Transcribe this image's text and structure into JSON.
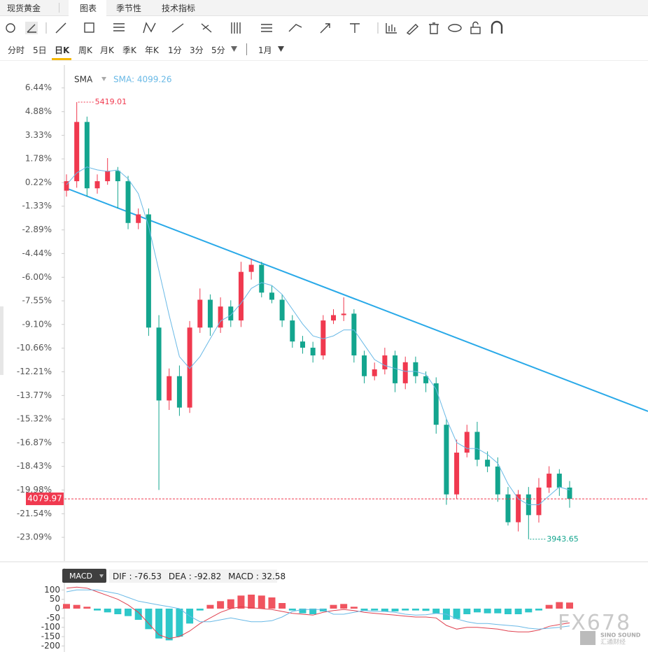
{
  "tabs": {
    "symbol": "现货黄金",
    "items": [
      "图表",
      "季节性",
      "技术指标"
    ]
  },
  "periods": [
    "分时",
    "5日",
    "日K",
    "周K",
    "月K",
    "季K",
    "年K",
    "1分",
    "3分",
    "5分"
  ],
  "period_extra": "1月",
  "watermark": {
    "text": "FX678",
    "brand": "SINO SOUND",
    "brand_cn": "汇通财经"
  },
  "chart_data": [
    {
      "type": "candlestick",
      "indicator": "SMA",
      "indicator_value_label": "SMA: 4099.26",
      "up_color": "#f0394f",
      "down_color": "#13a58e",
      "sma_color": "#69b9e6",
      "trend_color": "#29a9e8",
      "ylim": [
        3870,
        5544
      ],
      "yticks": [
        {
          "value": 5466.8,
          "label": "6.44%"
        },
        {
          "value": 5386.6,
          "label": "4.88%"
        },
        {
          "value": 5307.0,
          "label": "3.33%"
        },
        {
          "value": 5227.4,
          "label": "1.78%"
        },
        {
          "value": 5147.3,
          "label": "0.22%"
        },
        {
          "value": 5067.7,
          "label": "-1.33%"
        },
        {
          "value": 4987.6,
          "label": "-2.89%"
        },
        {
          "value": 4908.0,
          "label": "-4.44%"
        },
        {
          "value": 4827.8,
          "label": "-6.00%"
        },
        {
          "value": 4748.2,
          "label": "-7.55%"
        },
        {
          "value": 4668.6,
          "label": "-9.10%"
        },
        {
          "value": 4588.5,
          "label": "-10.66%"
        },
        {
          "value": 4508.9,
          "label": "-12.21%"
        },
        {
          "value": 4428.8,
          "label": "-13.77%"
        },
        {
          "value": 4349.2,
          "label": "-15.32%"
        },
        {
          "value": 4269.6,
          "label": "-16.87%"
        },
        {
          "value": 4189.5,
          "label": "-18.43%"
        },
        {
          "value": 4109.8,
          "label": "-19.98%"
        },
        {
          "value": 4029.7,
          "label": "-21.54%"
        },
        {
          "value": 3950.1,
          "label": "-23.09%"
        }
      ],
      "open": [
        5120,
        5152,
        5352,
        5128,
        5152,
        5187,
        5152,
        5011,
        5040,
        4658,
        4412,
        4494,
        4388,
        4658,
        4752,
        4658,
        4729,
        4682,
        4846,
        4870,
        4776,
        4752,
        4682,
        4611,
        4590,
        4564,
        4682,
        4700,
        4705,
        4564,
        4494,
        4517,
        4564,
        4470,
        4541,
        4494,
        4470,
        4330,
        4095,
        4236,
        4306,
        4212,
        4189,
        4095,
        4001,
        4095,
        4025,
        4118,
        4165,
        4118
      ],
      "high": [
        5175,
        5419.01,
        5370,
        5175,
        5230,
        5200,
        5170,
        5060,
        5060,
        4700,
        4520,
        4530,
        4680,
        4790,
        4770,
        4760,
        4750,
        4880,
        4890,
        4880,
        4800,
        4770,
        4700,
        4630,
        4610,
        4700,
        4720,
        4760,
        4720,
        4580,
        4540,
        4590,
        4580,
        4560,
        4560,
        4510,
        4490,
        4350,
        4280,
        4330,
        4340,
        4240,
        4220,
        4120,
        4110,
        4120,
        4150,
        4190,
        4180,
        4140
      ],
      "low": [
        5100,
        5130,
        5100,
        5110,
        5140,
        5060,
        4990,
        4990,
        4630,
        4110,
        4380,
        4360,
        4370,
        4640,
        4630,
        4640,
        4660,
        4660,
        4820,
        4760,
        4740,
        4660,
        4590,
        4570,
        4540,
        4550,
        4670,
        4680,
        4540,
        4470,
        4480,
        4500,
        4440,
        4450,
        4470,
        4440,
        4300,
        4060,
        4080,
        4220,
        4190,
        4170,
        4070,
        3990,
        3970,
        3943.65,
        4000,
        4100,
        4090,
        4050
      ],
      "close": [
        5152,
        5352,
        5128,
        5152,
        5187,
        5152,
        5011,
        5040,
        4658,
        4412,
        4494,
        4388,
        4658,
        4752,
        4658,
        4729,
        4682,
        4846,
        4870,
        4776,
        4752,
        4682,
        4611,
        4590,
        4564,
        4682,
        4700,
        4705,
        4564,
        4494,
        4517,
        4564,
        4470,
        4541,
        4494,
        4470,
        4330,
        4095,
        4236,
        4306,
        4212,
        4189,
        4095,
        4001,
        4095,
        4025,
        4118,
        4165,
        4118,
        4079.97
      ],
      "sma": [
        5140,
        5180,
        5200,
        5190,
        5185,
        5190,
        5160,
        5110,
        5000,
        4850,
        4700,
        4560,
        4520,
        4560,
        4620,
        4680,
        4700,
        4740,
        4790,
        4810,
        4800,
        4770,
        4720,
        4670,
        4630,
        4620,
        4630,
        4650,
        4650,
        4600,
        4550,
        4530,
        4520,
        4510,
        4510,
        4500,
        4450,
        4350,
        4270,
        4250,
        4250,
        4230,
        4200,
        4130,
        4080,
        4060,
        4060,
        4090,
        4120,
        4110
      ]
    },
    {
      "type": "macd",
      "name": "MACD",
      "dif_label": "DIF :",
      "dif_value": -76.53,
      "dea_label": "DEA :",
      "dea_value": -92.82,
      "macd_label": "MACD :",
      "macd_value": 32.58,
      "up_color": "#f0545f",
      "down_color": "#2ec7c9",
      "dif_color": "#e0404f",
      "dea_color": "#69b9e6",
      "ylim": [
        -225,
        135
      ],
      "yticks": [
        100,
        50,
        0,
        -50,
        -100,
        -150,
        -200
      ],
      "histogram": [
        25,
        20,
        10,
        -10,
        -20,
        -30,
        -40,
        -60,
        -110,
        -160,
        -170,
        -150,
        -80,
        -10,
        20,
        40,
        50,
        70,
        75,
        70,
        60,
        30,
        -10,
        -25,
        -30,
        -15,
        20,
        25,
        10,
        -10,
        -10,
        -15,
        -15,
        -10,
        -10,
        -12,
        -25,
        -60,
        -55,
        -30,
        -20,
        -25,
        -25,
        -30,
        -30,
        -20,
        -10,
        20,
        35,
        32.58
      ],
      "dif": [
        110,
        115,
        110,
        90,
        70,
        50,
        20,
        -20,
        -80,
        -140,
        -160,
        -150,
        -120,
        -80,
        -50,
        -20,
        0,
        10,
        5,
        0,
        -5,
        -15,
        -25,
        -30,
        -35,
        -20,
        -10,
        -5,
        -10,
        -20,
        -25,
        -30,
        -35,
        -40,
        -45,
        -45,
        -50,
        -90,
        -110,
        -100,
        -100,
        -105,
        -110,
        -120,
        -125,
        -125,
        -115,
        -95,
        -85,
        -76.53
      ],
      "dea": [
        90,
        100,
        100,
        100,
        90,
        80,
        60,
        40,
        30,
        20,
        10,
        0,
        -40,
        -70,
        -70,
        -60,
        -50,
        -60,
        -70,
        -70,
        -65,
        -45,
        -15,
        -5,
        -5,
        -5,
        -30,
        -30,
        -20,
        -10,
        -15,
        -15,
        -20,
        -30,
        -35,
        -33,
        -25,
        -30,
        -55,
        -70,
        -80,
        -80,
        -85,
        -90,
        -95,
        -105,
        -110,
        -105,
        -100,
        -92.82
      ]
    }
  ]
}
